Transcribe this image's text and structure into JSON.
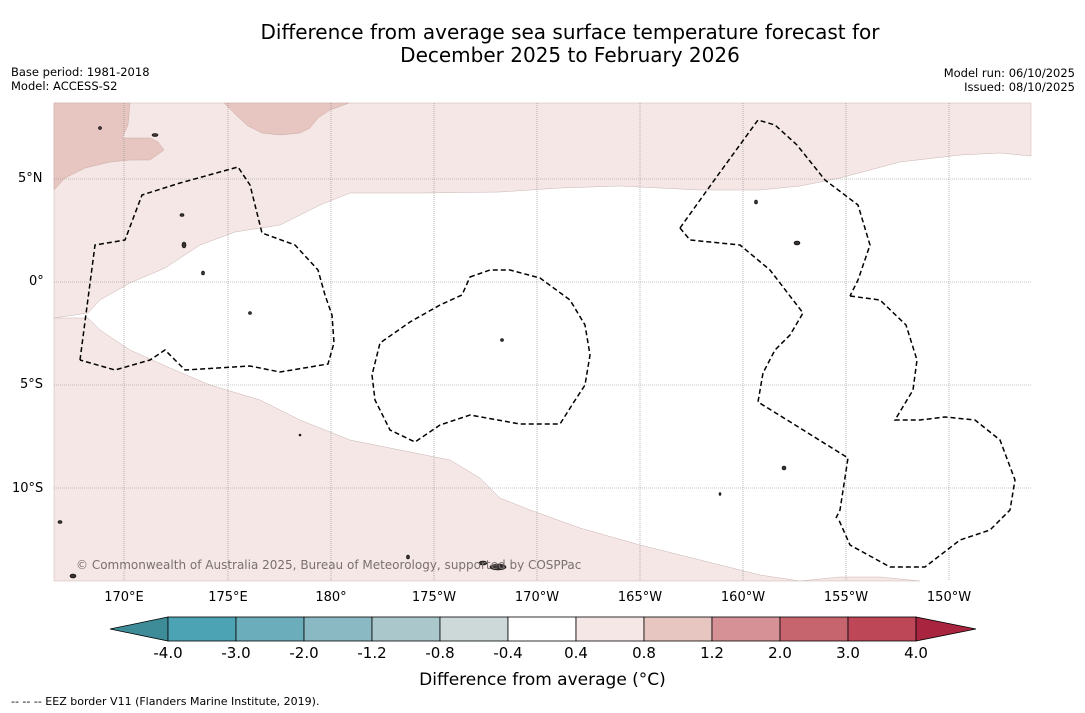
{
  "title_line1": "Difference from average sea surface temperature forecast for",
  "title_line2": "December 2025 to February 2026",
  "base_period": "Base period: 1981-2018",
  "model": "Model: ACCESS-S2",
  "model_run": "Model run: 06/10/2025",
  "issued": "Issued: 08/10/2025",
  "lat_labels": [
    "5°N",
    "0°",
    "5°S",
    "10°S"
  ],
  "lon_labels": [
    "170°E",
    "175°E",
    "180°",
    "175°W",
    "170°W",
    "165°W",
    "160°W",
    "155°W",
    "150°W"
  ],
  "copyright": "© Commonwealth of Australia 2025, Bureau of Meteorology, supported by COSPPac",
  "colorbar": {
    "ticks": [
      "-4.0",
      "-3.0",
      "-2.0",
      "-1.2",
      "-0.8",
      "-0.4",
      "0.4",
      "0.8",
      "1.2",
      "2.0",
      "3.0",
      "4.0"
    ],
    "colors": [
      "#3d8c98",
      "#4ca3b3",
      "#6cadbb",
      "#8ab8c3",
      "#aac8cc",
      "#cdd9d9",
      "#ffffff",
      "#f5e7e5",
      "#e7c6c1",
      "#d69197",
      "#c7656f",
      "#bd4657",
      "#a8243f"
    ],
    "label": "Difference from average (°C)"
  },
  "footnote": "-- -- -- EEZ border V11 (Flanders Marine Institute, 2019).",
  "legend_colors": {
    "land": "#3a3333",
    "light_anomaly": "#f5e7e5",
    "mid_anomaly": "#e7c6c1",
    "eez": "#000000"
  }
}
